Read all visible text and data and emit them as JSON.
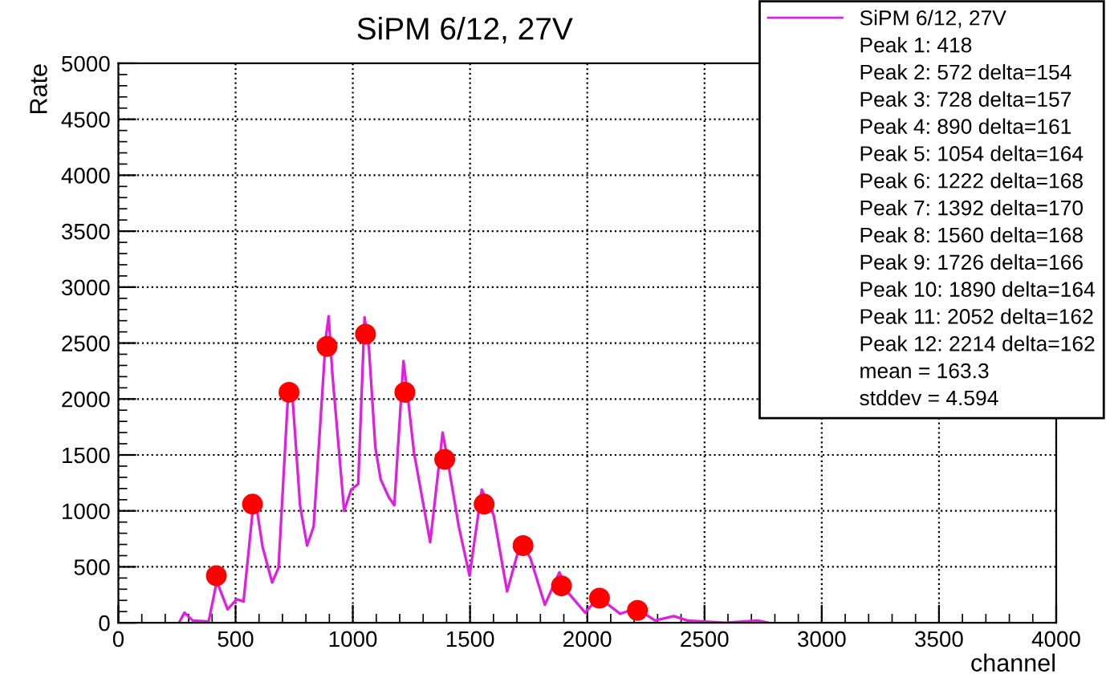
{
  "chart_data": {
    "type": "line",
    "title": "SiPM 6/12, 27V",
    "xlabel": "channel",
    "ylabel": "Rate",
    "xlim": [
      0,
      4000
    ],
    "xticks": [
      0,
      500,
      1000,
      1500,
      2000,
      2500,
      3000,
      3500,
      4000
    ],
    "ylim": [
      0,
      5000
    ],
    "yticks": [
      0,
      500,
      1000,
      1500,
      2000,
      2500,
      3000,
      3500,
      4000,
      4500,
      5000
    ],
    "grid": true,
    "legend": "top right",
    "series": [
      {
        "name": "SiPM 6/12, 27V",
        "color": "#e020e0",
        "marker": "none",
        "x": [
          259,
          282,
          317,
          385,
          420,
          466,
          505,
          534,
          573,
          587,
          615,
          656,
          683,
          725,
          739,
          775,
          805,
          833,
          885,
          897,
          913,
          963,
          993,
          1023,
          1050,
          1069,
          1096,
          1119,
          1154,
          1177,
          1216,
          1234,
          1261,
          1330,
          1383,
          1399,
          1452,
          1498,
          1550,
          1601,
          1658,
          1716,
          1757,
          1819,
          1881,
          1922,
          1991,
          2048,
          2140,
          2209,
          2289,
          2369,
          2427,
          2587,
          2725,
          2771
        ],
        "values": [
          0,
          90,
          20,
          10,
          370,
          120,
          210,
          190,
          1000,
          1070,
          680,
          360,
          490,
          2080,
          2130,
          1050,
          690,
          860,
          2550,
          2740,
          2220,
          1000,
          1190,
          1240,
          2730,
          2450,
          1570,
          1280,
          1120,
          1050,
          2340,
          2030,
          1520,
          720,
          1700,
          1520,
          860,
          420,
          1190,
          960,
          280,
          720,
          580,
          160,
          450,
          260,
          90,
          230,
          80,
          130,
          20,
          60,
          20,
          0,
          20,
          0
        ]
      },
      {
        "type": "scatter",
        "color": "#ff0000",
        "marker": "circle",
        "x": [
          418,
          572,
          728,
          890,
          1054,
          1222,
          1392,
          1560,
          1726,
          1890,
          2052,
          2214
        ],
        "values": [
          420,
          1060,
          2060,
          2470,
          2580,
          2060,
          1460,
          1060,
          690,
          330,
          220,
          110
        ]
      }
    ],
    "annotations": [
      "Peak 1: 418",
      "Peak 2: 572 delta=154",
      "Peak 3: 728 delta=157",
      "Peak 4: 890 delta=161",
      "Peak 5: 1054 delta=164",
      "Peak 6: 1222 delta=168",
      "Peak 7: 1392 delta=170",
      "Peak 8: 1560 delta=168",
      "Peak 9: 1726 delta=166",
      "Peak 10: 1890 delta=164",
      "Peak 11: 2052 delta=162",
      "Peak 12: 2214 delta=162",
      "mean = 163.3",
      "stddev = 4.594"
    ]
  }
}
